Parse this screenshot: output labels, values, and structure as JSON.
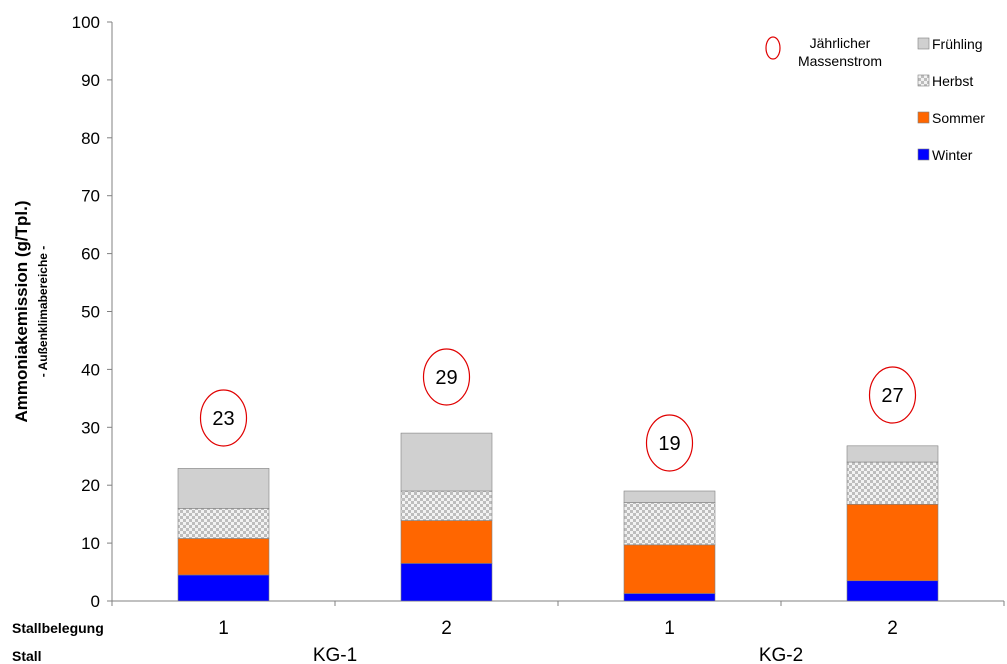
{
  "chart_data": {
    "type": "bar",
    "stacked": true,
    "ylabel": "Ammoniakemission (g/Tpl.)",
    "ylabel_sub": "- Außenklimabereiche -",
    "ylim": [
      0,
      100
    ],
    "yticks": [
      0,
      10,
      20,
      30,
      40,
      50,
      60,
      70,
      80,
      90,
      100
    ],
    "row_labels": {
      "stallbelegung": "Stallbelegung",
      "stall": "Stall"
    },
    "categories": [
      "1",
      "2",
      "1",
      "2"
    ],
    "groups": [
      {
        "name": "KG-1",
        "categories": [
          "1",
          "2"
        ]
      },
      {
        "name": "KG-2",
        "categories": [
          "1",
          "2"
        ]
      }
    ],
    "series": [
      {
        "name": "Winter",
        "color": "#0000ff",
        "pattern": "solid",
        "values": [
          4.5,
          6.5,
          1.3,
          3.5
        ]
      },
      {
        "name": "Sommer",
        "color": "#ff6600",
        "pattern": "solid",
        "values": [
          6.3,
          7.4,
          8.4,
          13.2
        ]
      },
      {
        "name": "Herbst",
        "color": "#d9d9d9",
        "pattern": "checker",
        "values": [
          5.2,
          5.1,
          7.3,
          7.3
        ]
      },
      {
        "name": "Frühling",
        "color": "#d0d0d0",
        "pattern": "solid",
        "values": [
          6.9,
          10.0,
          2.0,
          2.8
        ]
      }
    ],
    "totals": [
      23,
      29,
      19,
      27
    ],
    "totals_marker": "ellipse-red",
    "legend": {
      "placement": "top-right",
      "order": [
        "Frühling",
        "Herbst",
        "Sommer",
        "Winter"
      ],
      "totals_label": "Jährlicher Massenstrom"
    },
    "grid": false
  }
}
